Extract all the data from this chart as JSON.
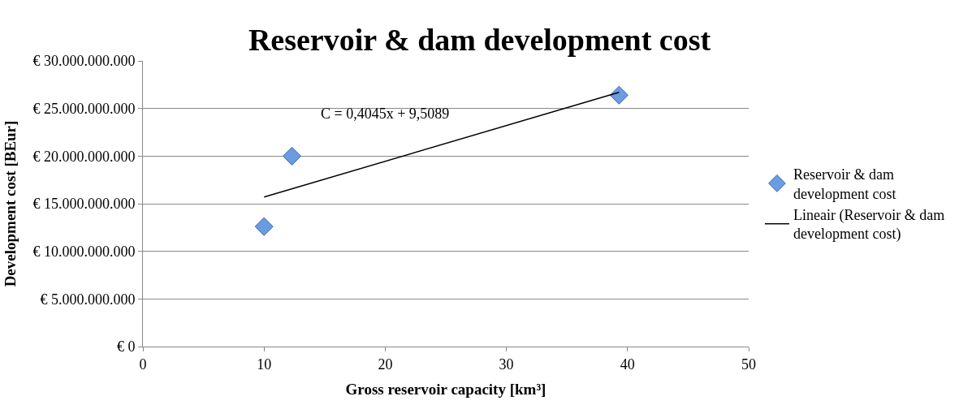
{
  "chart_data": {
    "type": "scatter",
    "title": "Reservoir & dam development cost",
    "xlabel": "Gross reservoir capacity [km³]",
    "ylabel": "Development cost [BEur]",
    "series": [
      {
        "name": "Reservoir & dam development cost",
        "color": "#6b9be0",
        "marker": "diamond",
        "x": [
          10,
          12.3,
          39.3
        ],
        "values": [
          12600000000,
          20000000000,
          26400000000
        ]
      },
      {
        "name": "Lineair (Reservoir & dam development cost)",
        "type": "line",
        "color": "#000000",
        "line_style": "solid",
        "marker": "none",
        "x": [
          10,
          39.3
        ],
        "values": [
          15700000000,
          26700000000
        ]
      }
    ],
    "annotations": [
      "C = 0,4045x + 9,5089"
    ],
    "xlim": [
      0,
      50
    ],
    "xticks": [
      0,
      10,
      20,
      30,
      40,
      50
    ],
    "ylim": [
      0,
      30000000000
    ],
    "yticks": [
      {
        "value": 0,
        "label": "€ 0"
      },
      {
        "value": 5000000000,
        "label": "€ 5.000.000.000"
      },
      {
        "value": 10000000000,
        "label": "€ 10.000.000.000"
      },
      {
        "value": 15000000000,
        "label": "€ 15.000.000.000"
      },
      {
        "value": 20000000000,
        "label": "€ 20.000.000.000"
      },
      {
        "value": 25000000000,
        "label": "€ 25.000.000.000"
      },
      {
        "value": 30000000000,
        "label": "€ 30.000.000.000"
      }
    ],
    "grid": "y",
    "legend": "right"
  }
}
